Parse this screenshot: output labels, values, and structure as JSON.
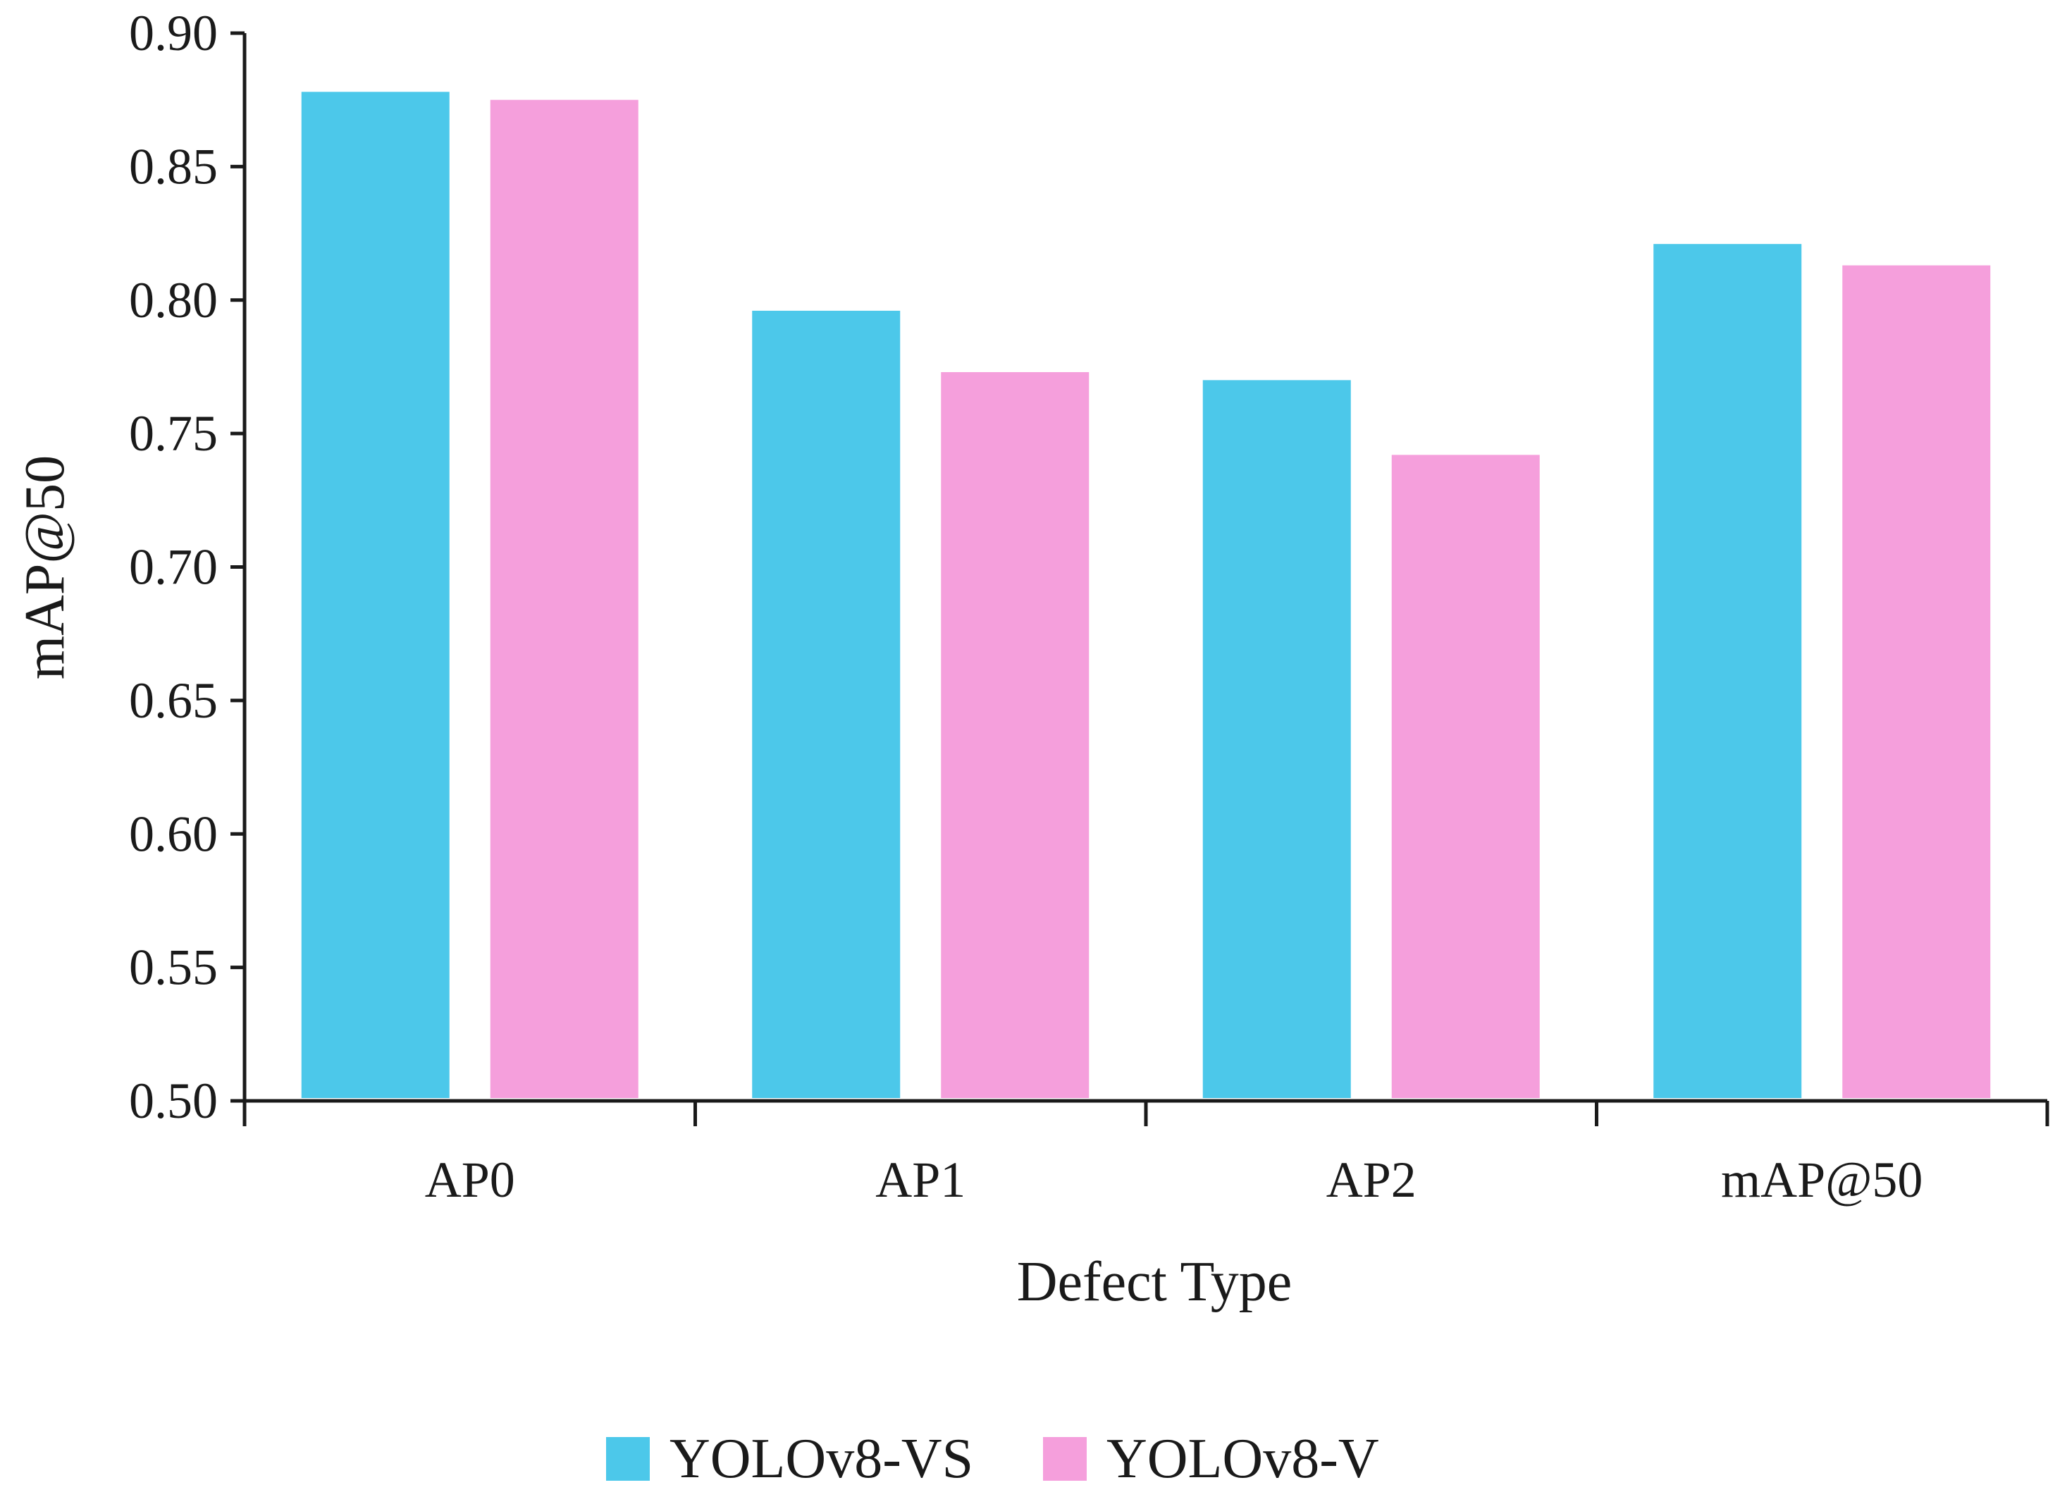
{
  "chart_data": {
    "type": "bar",
    "title": "",
    "xlabel": "Defect Type",
    "ylabel": "mAP@50",
    "categories": [
      "AP0",
      "AP1",
      "AP2",
      "mAP@50"
    ],
    "ylim": [
      0.5,
      0.9
    ],
    "yticks": [
      "0.50",
      "0.55",
      "0.60",
      "0.65",
      "0.70",
      "0.75",
      "0.80",
      "0.85",
      "0.90"
    ],
    "grid": false,
    "legend_position": "bottom-center",
    "series": [
      {
        "name": "YOLOv8-VS",
        "color": "#4cc8ea",
        "values": [
          0.878,
          0.796,
          0.77,
          0.821
        ]
      },
      {
        "name": "YOLOv8-V",
        "color": "#f59fdc",
        "values": [
          0.875,
          0.773,
          0.742,
          0.813
        ]
      }
    ]
  }
}
